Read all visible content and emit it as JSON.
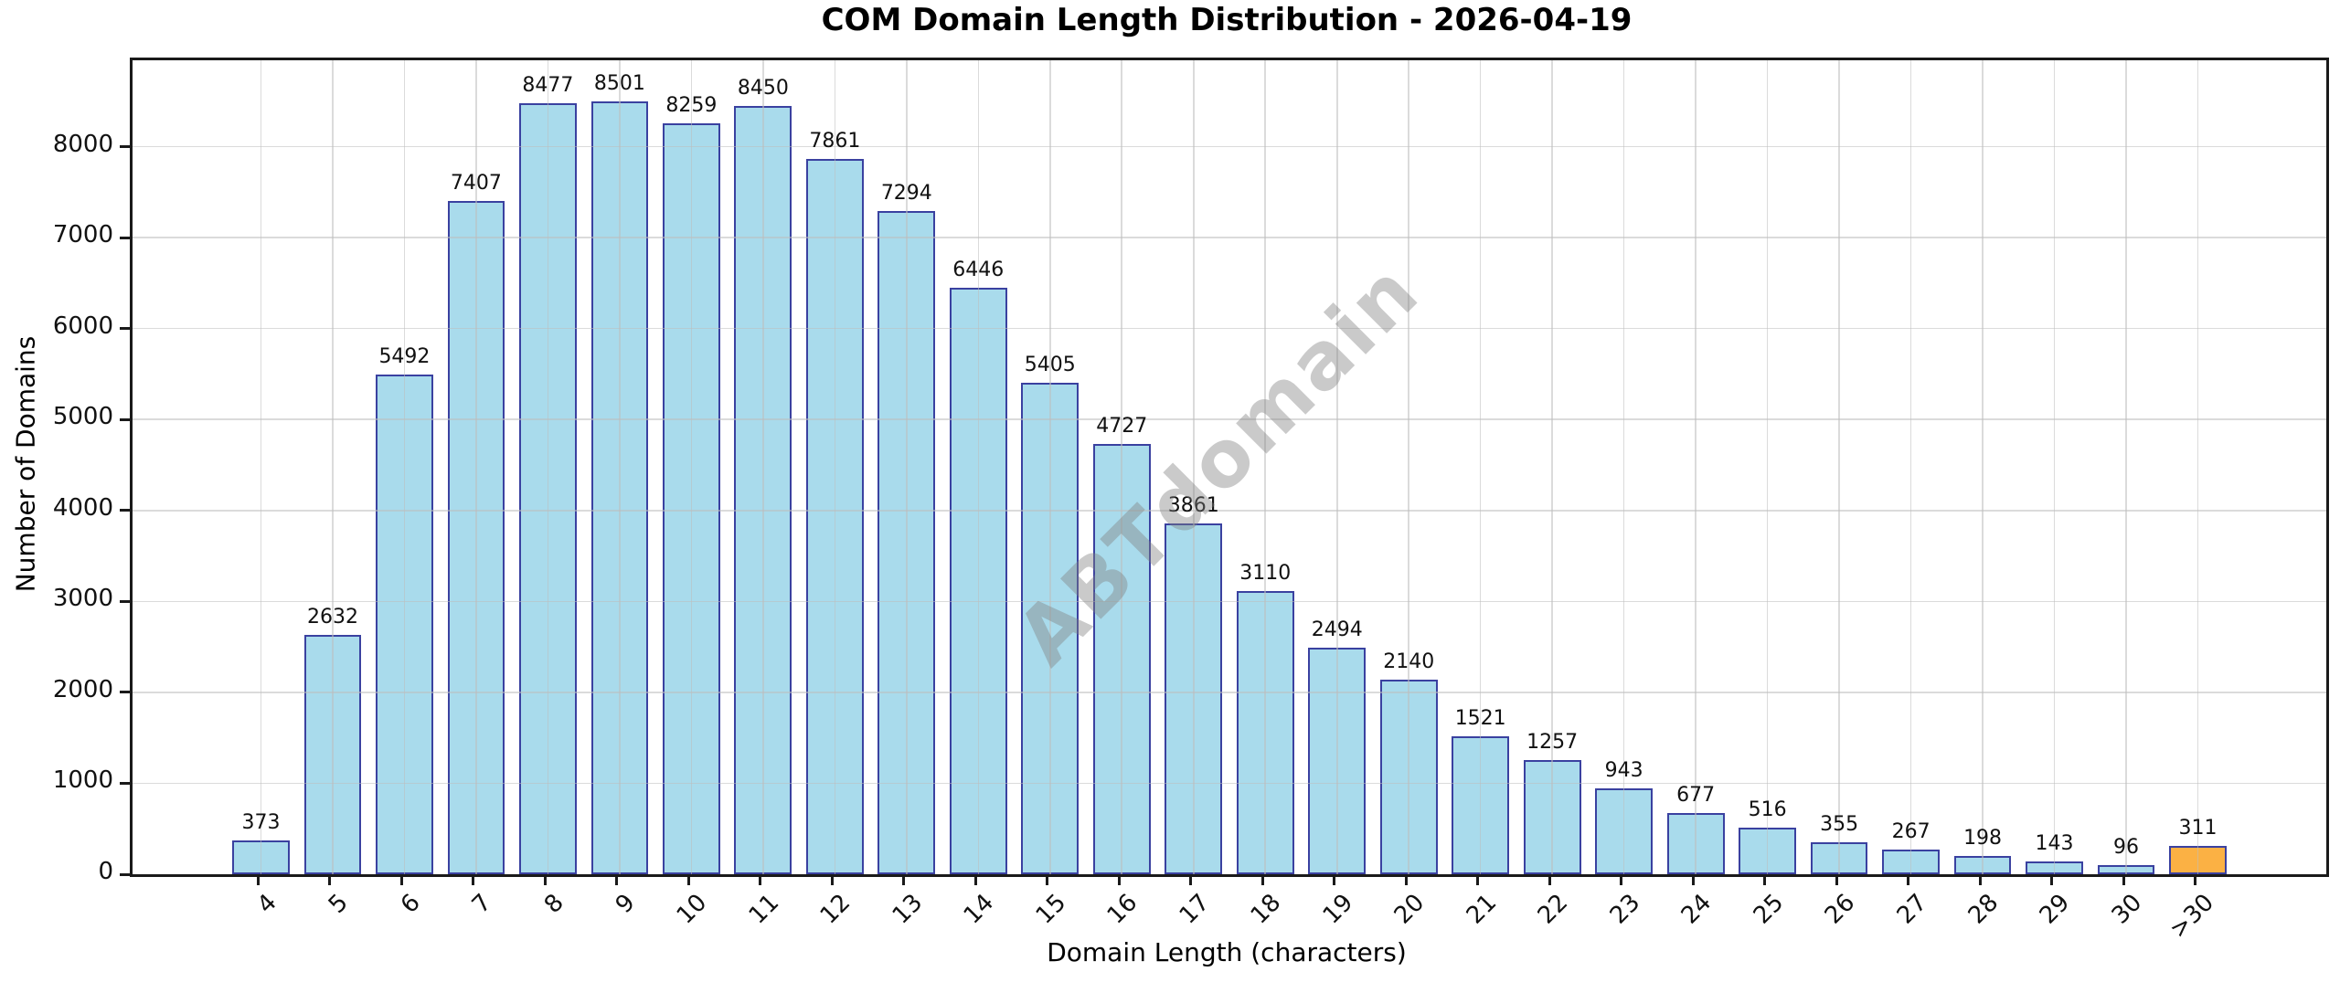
{
  "chart_data": {
    "type": "bar",
    "title": "COM Domain Length Distribution - 2026-04-19",
    "xlabel": "Domain Length (characters)",
    "ylabel": "Number of Domains",
    "categories": [
      "4",
      "5",
      "6",
      "7",
      "8",
      "9",
      "10",
      "11",
      "12",
      "13",
      "14",
      "15",
      "16",
      "17",
      "18",
      "19",
      "20",
      "21",
      "22",
      "23",
      "24",
      "25",
      "26",
      "27",
      "28",
      "29",
      "30",
      ">30"
    ],
    "values": [
      373,
      2632,
      5492,
      7407,
      8477,
      8501,
      8259,
      8450,
      7861,
      7294,
      6446,
      5405,
      4727,
      3861,
      3110,
      2494,
      2140,
      1521,
      1257,
      943,
      677,
      516,
      355,
      267,
      198,
      143,
      96,
      311
    ],
    "ylim": [
      0,
      8950
    ],
    "yticks": [
      0,
      1000,
      2000,
      3000,
      4000,
      5000,
      6000,
      7000,
      8000
    ],
    "grid": true,
    "legend": null,
    "watermark": "ABTdomain",
    "highlight_category": ">30",
    "colors": {
      "bar_fill": "#A9DBEC",
      "bar_edge": "#3A41A0",
      "highlight_fill": "#FBB144",
      "grid": "rgba(190,190,190,0.55)",
      "axis": "#1A1A1A",
      "text": "#111111",
      "watermark": "rgba(128,128,128,0.42)"
    }
  }
}
